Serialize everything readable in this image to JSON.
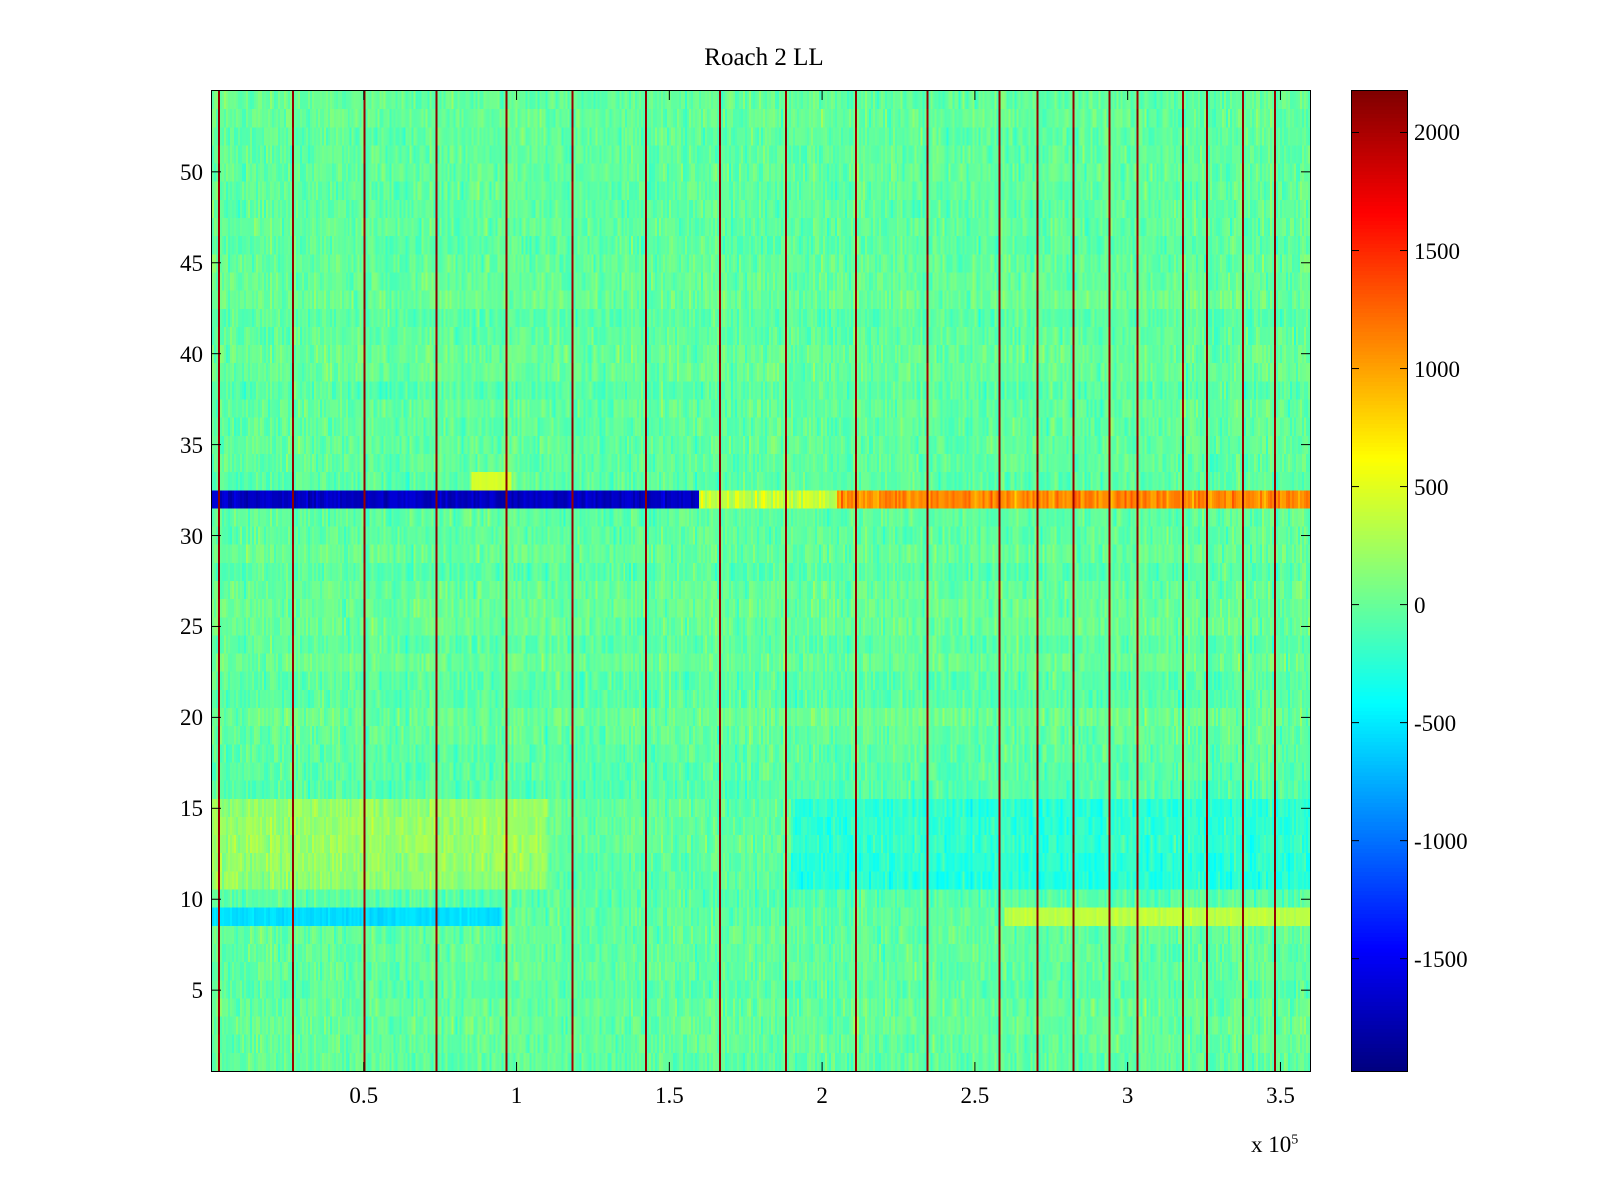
{
  "chart_data": {
    "type": "heatmap",
    "title": "Roach 2 LL",
    "xlabel": "",
    "ylabel": "",
    "x_multiplier": "x 10",
    "x_multiplier_exponent": "5",
    "xlim": [
      0,
      360000
    ],
    "ylim": [
      0.5,
      54.5
    ],
    "x_ticks": [
      "0.5",
      "1",
      "1.5",
      "2",
      "2.5",
      "3",
      "3.5"
    ],
    "x_tick_values": [
      0.5,
      1,
      1.5,
      2,
      2.5,
      3,
      3.5
    ],
    "y_ticks": [
      "5",
      "10",
      "15",
      "20",
      "25",
      "30",
      "35",
      "40",
      "45",
      "50"
    ],
    "y_tick_values": [
      5,
      10,
      15,
      20,
      25,
      30,
      35,
      40,
      45,
      50
    ],
    "colorbar": {
      "colormap": "jet",
      "clim": [
        -1980,
        2180
      ],
      "ticks": [
        "2000",
        "1500",
        "1000",
        "500",
        "0",
        "-500",
        "-1000",
        "-1500"
      ],
      "tick_values": [
        2000,
        1500,
        1000,
        500,
        0,
        -500,
        -1000,
        -1500
      ]
    },
    "rows": 54,
    "typical_value_range": [
      -600,
      500
    ],
    "features": {
      "vertical_high_stripes_x": [
        2000,
        26000,
        50000,
        73000,
        96000,
        118000,
        142000,
        166000,
        188000,
        211000,
        234000,
        258000,
        270000,
        282000,
        294000,
        303000,
        318000,
        326000,
        338000,
        348000
      ],
      "row_32_negative_until_x": 160000,
      "row_32_negative_value": -1700,
      "row_32_positive_after_x": 205000,
      "row_32_positive_value": 1100,
      "row_9_negative_until_x": 95000,
      "row_9_negative_value": -550,
      "row_9_positive_after_x": 260000,
      "row_9_positive_value": 350,
      "rows_11_to_15_positive_until_x": 110000,
      "rows_11_to_15_negative_after_x": 190000
    }
  }
}
